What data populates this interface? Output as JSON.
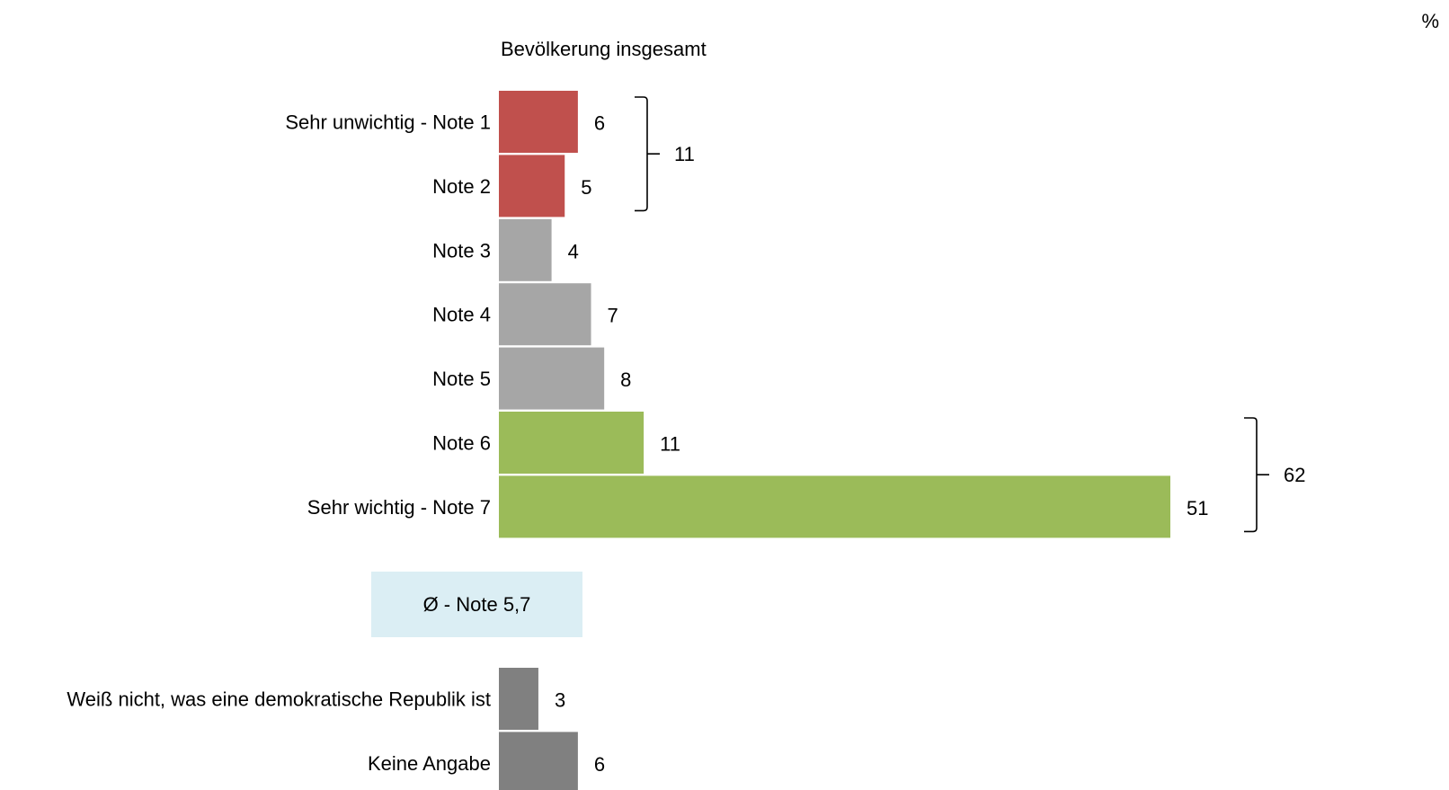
{
  "unit": "%",
  "chart_data": {
    "type": "bar",
    "orientation": "horizontal",
    "title": "Bevölkerung insgesamt",
    "categories": [
      "Sehr unwichtig - Note 1",
      "Note 2",
      "Note 3",
      "Note 4",
      "Note 5",
      "Note 6",
      "Sehr wichtig - Note 7",
      "Weiß nicht, was eine demokratische Republik ist",
      "Keine Angabe"
    ],
    "values": [
      6,
      5,
      4,
      7,
      8,
      11,
      51,
      3,
      6
    ],
    "bar_colors": [
      "#c0504d",
      "#c0504d",
      "#a6a6a6",
      "#a6a6a6",
      "#a6a6a6",
      "#9bbb59",
      "#9bbb59",
      "#808080",
      "#808080"
    ],
    "groups": [
      {
        "label": "11",
        "from": 0,
        "to": 1
      },
      {
        "label": "62",
        "from": 5,
        "to": 6
      }
    ],
    "average_label": "Ø - Note 5,7",
    "xlim": [
      0,
      51
    ]
  }
}
